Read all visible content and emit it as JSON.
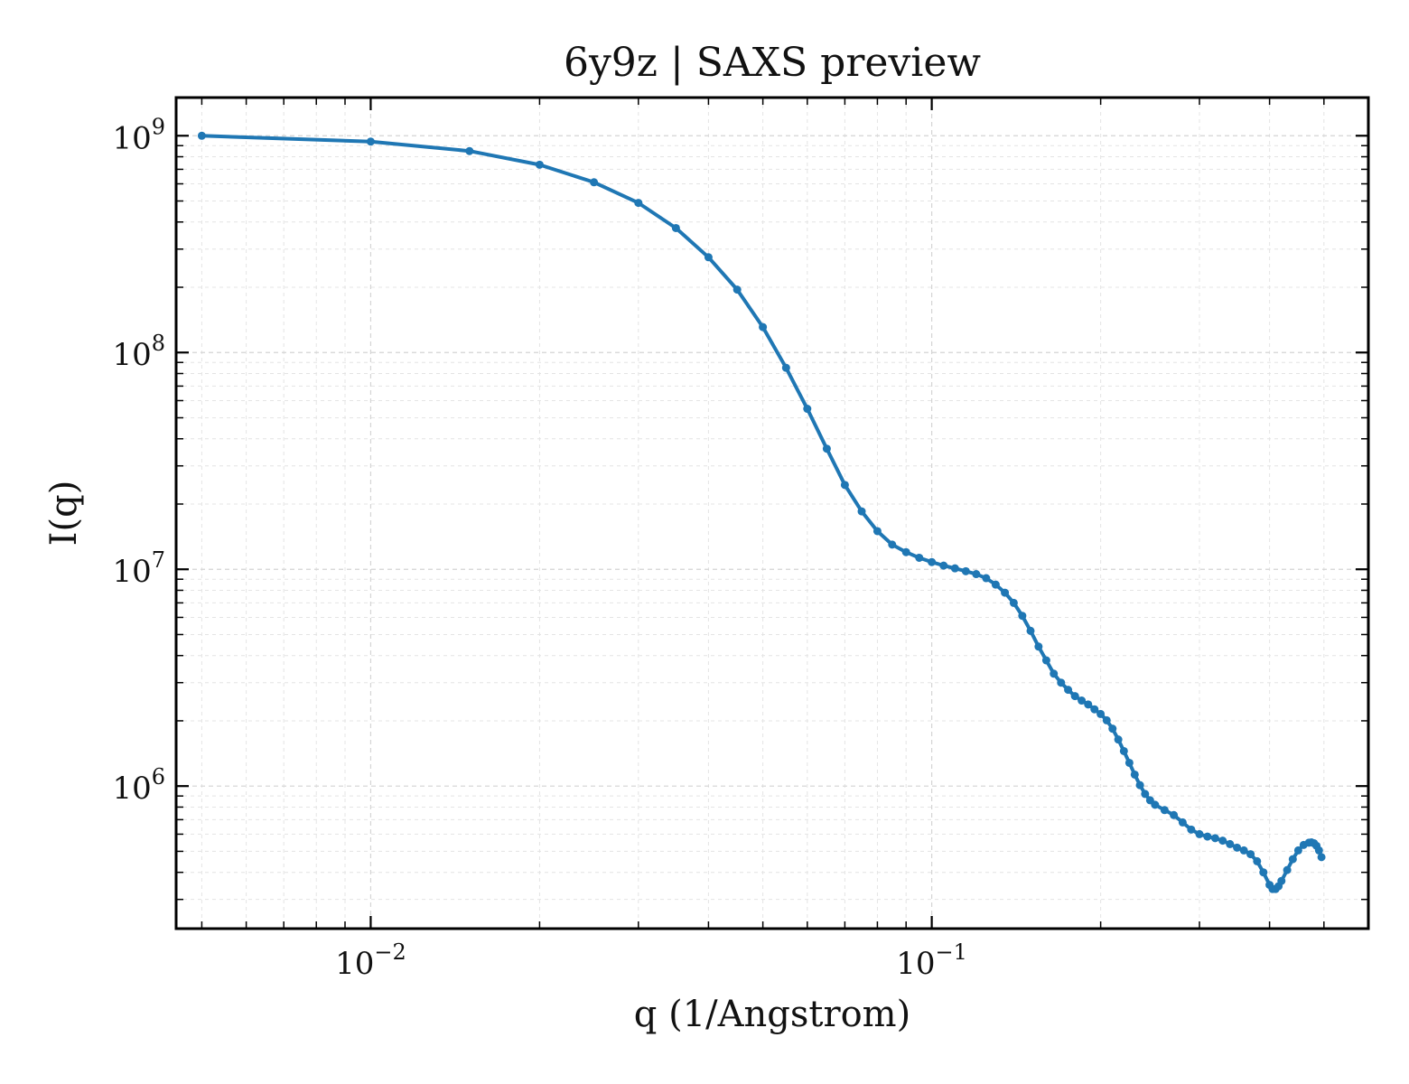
{
  "chart_data": {
    "type": "line",
    "title": "6y9z | SAXS preview",
    "xlabel": "q (1/Angstrom)",
    "ylabel": "I(q)",
    "xscale": "log",
    "yscale": "log",
    "xlim": [
      0.0045,
      0.6
    ],
    "ylim": [
      220000,
      1500000000
    ],
    "x_ticks": [
      {
        "value": 0.01,
        "base": "10",
        "exp": "−2"
      },
      {
        "value": 0.1,
        "base": "10",
        "exp": "−1"
      }
    ],
    "y_ticks": [
      {
        "value": 1000000,
        "base": "10",
        "exp": "6"
      },
      {
        "value": 10000000,
        "base": "10",
        "exp": "7"
      },
      {
        "value": 100000000,
        "base": "10",
        "exp": "8"
      },
      {
        "value": 1000000000,
        "base": "10",
        "exp": "9"
      }
    ],
    "grid": true,
    "series": [
      {
        "color": "#1f77b4",
        "marker": "dot",
        "points": [
          [
            0.005,
            1000000000
          ],
          [
            0.01,
            940000000
          ],
          [
            0.015,
            850000000
          ],
          [
            0.02,
            735000000
          ],
          [
            0.025,
            610000000
          ],
          [
            0.03,
            490000000
          ],
          [
            0.035,
            375000000
          ],
          [
            0.04,
            275000000
          ],
          [
            0.045,
            195000000
          ],
          [
            0.05,
            131000000
          ],
          [
            0.055,
            85000000
          ],
          [
            0.06,
            55000000
          ],
          [
            0.065,
            36000000
          ],
          [
            0.07,
            24500000
          ],
          [
            0.075,
            18500000
          ],
          [
            0.08,
            15000000
          ],
          [
            0.085,
            13000000
          ],
          [
            0.09,
            12000000
          ],
          [
            0.095,
            11300000
          ],
          [
            0.1,
            10800000
          ],
          [
            0.105,
            10400000
          ],
          [
            0.11,
            10100000
          ],
          [
            0.115,
            9800000
          ],
          [
            0.12,
            9500000
          ],
          [
            0.125,
            9100000
          ],
          [
            0.13,
            8500000
          ],
          [
            0.135,
            7800000
          ],
          [
            0.14,
            7000000
          ],
          [
            0.145,
            6100000
          ],
          [
            0.15,
            5200000
          ],
          [
            0.155,
            4400000
          ],
          [
            0.16,
            3800000
          ],
          [
            0.165,
            3300000
          ],
          [
            0.17,
            3000000
          ],
          [
            0.175,
            2780000
          ],
          [
            0.18,
            2600000
          ],
          [
            0.185,
            2480000
          ],
          [
            0.19,
            2380000
          ],
          [
            0.195,
            2260000
          ],
          [
            0.2,
            2150000
          ],
          [
            0.205,
            2010000
          ],
          [
            0.21,
            1840000
          ],
          [
            0.215,
            1640000
          ],
          [
            0.22,
            1450000
          ],
          [
            0.225,
            1280000
          ],
          [
            0.23,
            1130000
          ],
          [
            0.235,
            1010000
          ],
          [
            0.24,
            920000
          ],
          [
            0.245,
            860000
          ],
          [
            0.25,
            820000
          ],
          [
            0.26,
            775000
          ],
          [
            0.27,
            735000
          ],
          [
            0.28,
            680000
          ],
          [
            0.29,
            630000
          ],
          [
            0.3,
            600000
          ],
          [
            0.31,
            585000
          ],
          [
            0.32,
            575000
          ],
          [
            0.33,
            560000
          ],
          [
            0.34,
            540000
          ],
          [
            0.35,
            520000
          ],
          [
            0.36,
            505000
          ],
          [
            0.37,
            485000
          ],
          [
            0.38,
            450000
          ],
          [
            0.39,
            400000
          ],
          [
            0.4,
            350000
          ],
          [
            0.405,
            335000
          ],
          [
            0.41,
            335000
          ],
          [
            0.415,
            345000
          ],
          [
            0.42,
            365000
          ],
          [
            0.43,
            410000
          ],
          [
            0.44,
            460000
          ],
          [
            0.45,
            505000
          ],
          [
            0.46,
            535000
          ],
          [
            0.47,
            548000
          ],
          [
            0.475,
            550000
          ],
          [
            0.48,
            545000
          ],
          [
            0.485,
            530000
          ],
          [
            0.49,
            505000
          ],
          [
            0.495,
            470000
          ]
        ]
      }
    ]
  }
}
